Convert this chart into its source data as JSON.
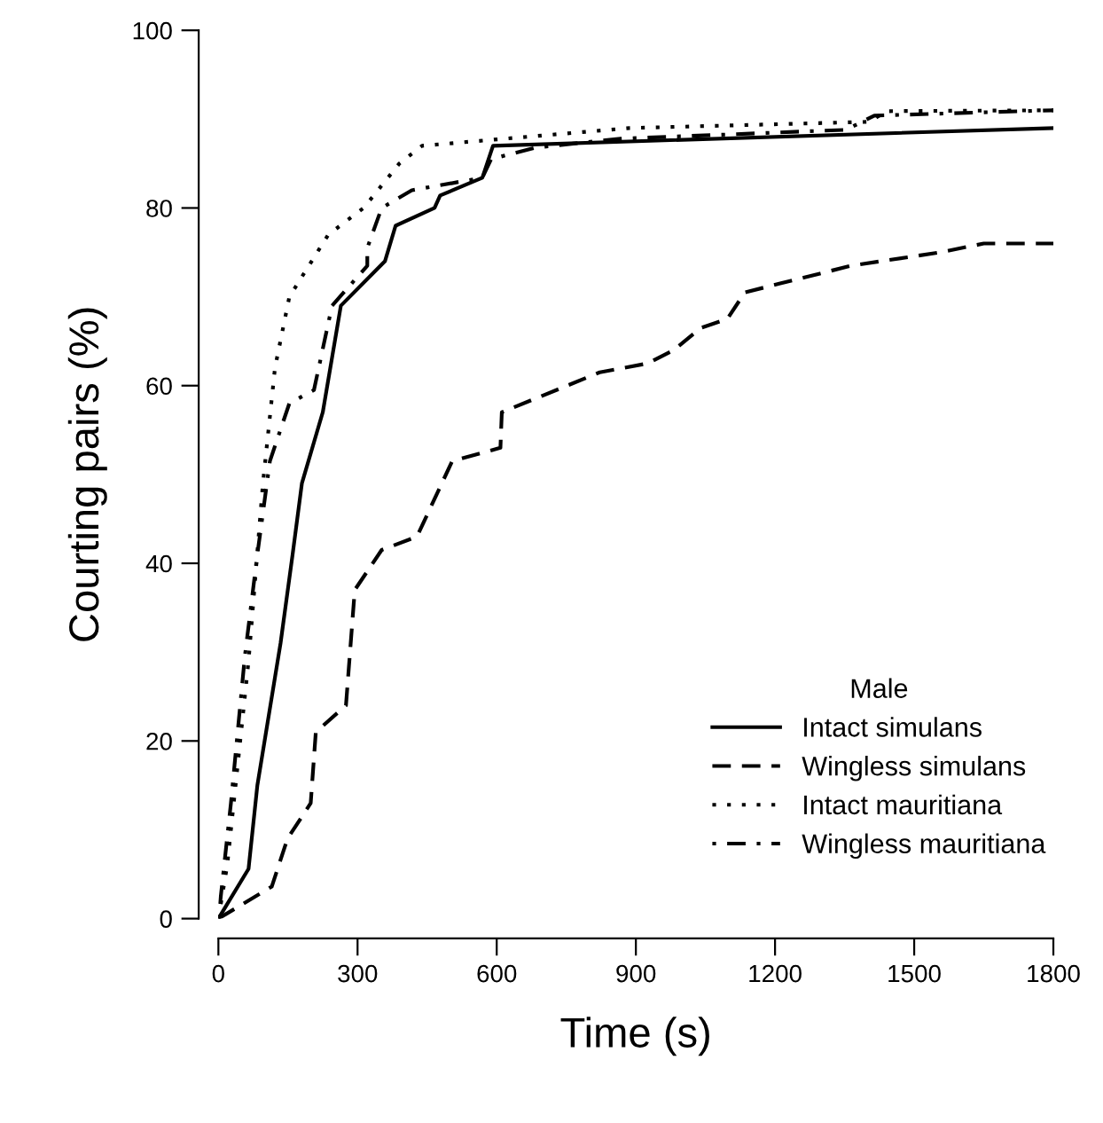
{
  "chart_data": {
    "type": "line",
    "xlabel": "Time (s)",
    "ylabel": "Courting pairs (%)",
    "legend_title": "Male",
    "legend": "bottom right",
    "grid": false,
    "xlim": [
      0,
      1800
    ],
    "ylim": [
      0,
      100
    ],
    "xticks": [
      0,
      300,
      600,
      900,
      1200,
      1500,
      1800
    ],
    "yticks": [
      0,
      20,
      40,
      60,
      80,
      100
    ],
    "series": [
      {
        "name": "Intact simulans",
        "color": "#000000",
        "line_style": "solid",
        "x": [
          0,
          65,
          84,
          134,
          160,
          180,
          225,
          264,
          359,
          382,
          466,
          478,
          569,
          592,
          1800
        ],
        "values": [
          0,
          5.6,
          15,
          31,
          41,
          49,
          57,
          69,
          74,
          78,
          80,
          81.4,
          83.4,
          87,
          89
        ]
      },
      {
        "name": "Wingless simulans",
        "color": "#000000",
        "line_style": "dashed",
        "x": [
          0,
          115,
          149,
          199,
          210,
          275,
          294,
          352,
          428,
          504,
          608,
          611,
          822,
          925,
          982,
          1040,
          1097,
          1135,
          1211,
          1364,
          1555,
          1650,
          1800
        ],
        "values": [
          0,
          3.6,
          9,
          13,
          21,
          24,
          37,
          41.5,
          43,
          51.5,
          53,
          57,
          61.5,
          62.5,
          64,
          66.5,
          67.5,
          70.5,
          71.5,
          73.5,
          75,
          76,
          76
        ]
      },
      {
        "name": "Intact mauritiana",
        "color": "#000000",
        "line_style": "dotted",
        "x": [
          0,
          19,
          65,
          96,
          122,
          153,
          237,
          313,
          390,
          439,
          887,
          1403,
          1440,
          1800
        ],
        "values": [
          0,
          6,
          29,
          49,
          62,
          70,
          77,
          80,
          85,
          87,
          89,
          89.7,
          90.9,
          91
        ]
      },
      {
        "name": "Wingless mauritiana",
        "color": "#000000",
        "line_style": "dashdot",
        "x": [
          0,
          27,
          57,
          84,
          111,
          153,
          206,
          245,
          321,
          321,
          352,
          417,
          569,
          588,
          684,
          867,
          1353,
          1414,
          1800
        ],
        "values": [
          0,
          13,
          29.5,
          41,
          51.5,
          58,
          59.5,
          69,
          73.5,
          75.5,
          80,
          82,
          83.4,
          85.5,
          86.8,
          87.8,
          88.8,
          90.4,
          91
        ]
      }
    ]
  }
}
